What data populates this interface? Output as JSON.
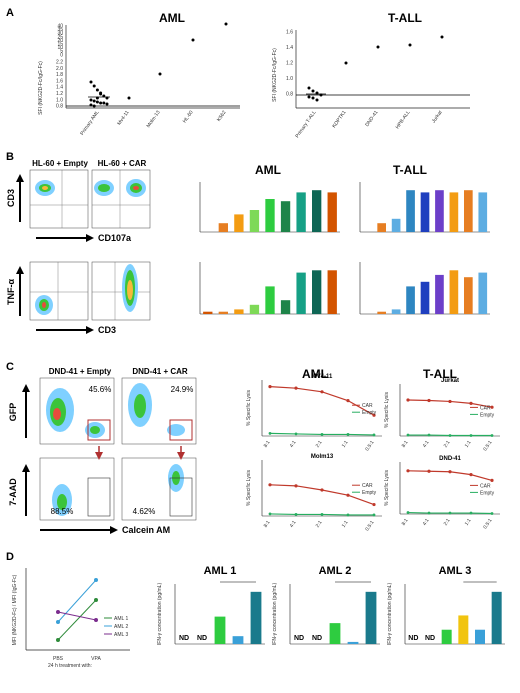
{
  "panels": {
    "A": {
      "letter": "A",
      "aml": {
        "title": "AML",
        "ylabel": "SFI (NKG2D-Fc/IgG-Fc)",
        "ticks_high": [
          "40",
          "35",
          "30",
          "25",
          "20",
          "15",
          "10",
          "5",
          "0"
        ],
        "ticks_low": [
          "2.2",
          "2.0",
          "1.8",
          "1.6",
          "1.4",
          "1.2",
          "1.0",
          "0.8"
        ],
        "categories": [
          "Primary AML",
          "Mv4-11",
          "Molm-13",
          "HL-60",
          "K562"
        ]
      },
      "tall": {
        "title": "T-ALL",
        "ylabel": "SFI (NKG2D-Fc/IgG-Fc)",
        "ticks": [
          "1.6",
          "1.4",
          "1.2",
          "1.0",
          "0.8"
        ],
        "categories": [
          "Primary T-ALL",
          "KOPTK1",
          "DND-41",
          "HPB-ALL",
          "Jurkat"
        ]
      }
    },
    "B": {
      "letter": "B",
      "flow_titles": [
        "HL-60 + Empty",
        "HL-60 + CAR"
      ],
      "cd3": "CD3",
      "cd107a": "CD107a",
      "tnfa": "TNF-α",
      "cd3_bottom": "CD3",
      "aml_title": "AML",
      "tall_title": "T-ALL"
    },
    "C": {
      "letter": "C",
      "flow_titles": [
        "DND-41 + Empty",
        "DND-41 + CAR"
      ],
      "gfp": "GFP",
      "aad": "7-AAD",
      "calcein": "Calcein AM",
      "pct": [
        "45.6%",
        "24.9%",
        "88.5%",
        "4.62%"
      ],
      "aml_title": "AML",
      "tall_title": "T-ALL",
      "lysis_ylabel": "% Specific Lysis",
      "et_ticks": [
        "8:1",
        "4:1",
        "2:1",
        "1:1",
        "0.5:1"
      ],
      "lysis": [
        {
          "name": "MV4-11",
          "car": [
            95,
            92,
            85,
            68,
            40
          ],
          "empty": [
            5,
            4,
            3,
            3,
            2
          ]
        },
        {
          "name": "Molm13",
          "car": [
            60,
            58,
            50,
            40,
            22
          ],
          "empty": [
            4,
            3,
            3,
            2,
            2
          ]
        },
        {
          "name": "Jurkat",
          "car": [
            75,
            74,
            72,
            68,
            60
          ],
          "empty": [
            2,
            2,
            1,
            1,
            1
          ]
        },
        {
          "name": "DND-41",
          "car": [
            90,
            89,
            88,
            82,
            70
          ],
          "empty": [
            3,
            2,
            2,
            2,
            1
          ]
        }
      ],
      "legend": [
        "CAR",
        "Empty"
      ]
    },
    "D": {
      "letter": "D",
      "ylabel": "MFI (NKG2D-Fc) / MFI (IgG-Fc)",
      "xlabels": [
        "PBS",
        "VPA"
      ],
      "xtitle": "24 h treatment with:",
      "legend": [
        "AML 1",
        "AML 2",
        "AML 3"
      ],
      "nd": "ND",
      "bar_ylabel": "IFN-γ concentration (pg/mL)",
      "bar_panels": [
        {
          "title": "AML 1",
          "values": [
            0,
            0,
            4200,
            1200,
            8000
          ]
        },
        {
          "title": "AML 2",
          "values": [
            0,
            0,
            20000,
            2000,
            50000
          ]
        },
        {
          "title": "AML 3",
          "values": [
            0,
            0,
            2600,
            5200,
            2600,
            9500
          ]
        }
      ]
    }
  },
  "colors": {
    "car": "#c0392b",
    "empty": "#27ae60",
    "aml1": "#2e8b3a",
    "aml2": "#3aa0d8",
    "aml3": "#7b2d8e"
  }
}
